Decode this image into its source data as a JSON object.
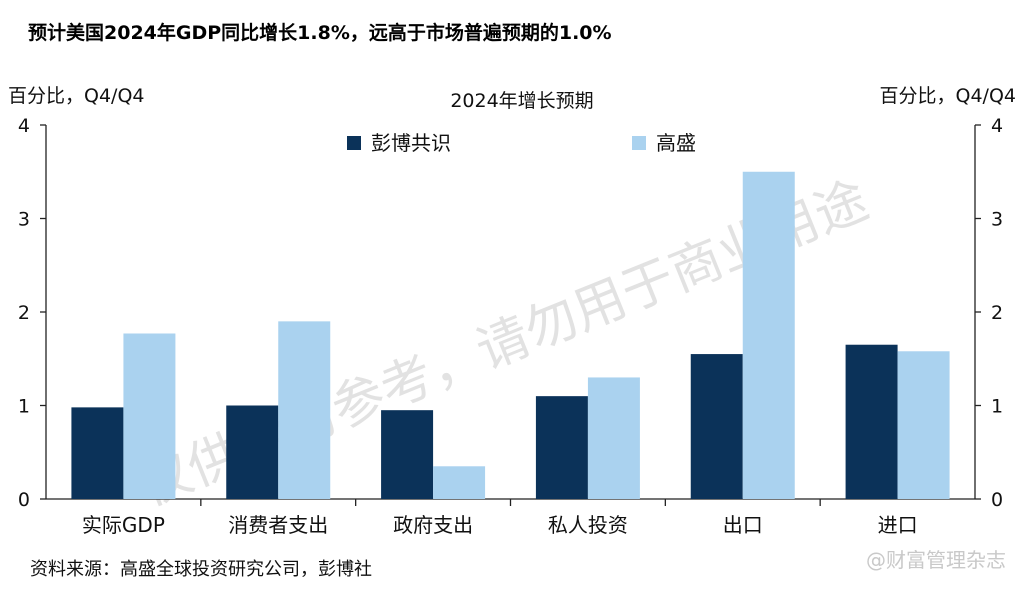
{
  "headline": "预计美国2024年GDP同比增长1.8%，远高于市场普遍预期的1.0%",
  "source": "资料来源：高盛全球投资研究公司，彭博社",
  "watermark": "仅供学习参考，请勿用于商业用途",
  "watermark_corner": "@财富管理杂志",
  "chart_data": {
    "type": "bar",
    "title": "2024年增长预期",
    "ylabel_left": "百分比，Q4/Q4",
    "ylabel_right": "百分比，Q4/Q4",
    "ylim": [
      0,
      4
    ],
    "yticks": [
      0,
      1,
      2,
      3,
      4
    ],
    "grid": false,
    "legend_position": "top-center",
    "categories": [
      "实际GDP",
      "消费者支出",
      "政府支出",
      "私人投资",
      "出口",
      "进口"
    ],
    "series": [
      {
        "name": "彭博共识",
        "color": "#0b3259",
        "values": [
          0.98,
          1.0,
          0.95,
          1.1,
          1.55,
          1.65
        ]
      },
      {
        "name": "高盛",
        "color": "#aad2ef",
        "values": [
          1.77,
          1.9,
          0.35,
          1.3,
          3.5,
          1.58
        ]
      }
    ]
  }
}
